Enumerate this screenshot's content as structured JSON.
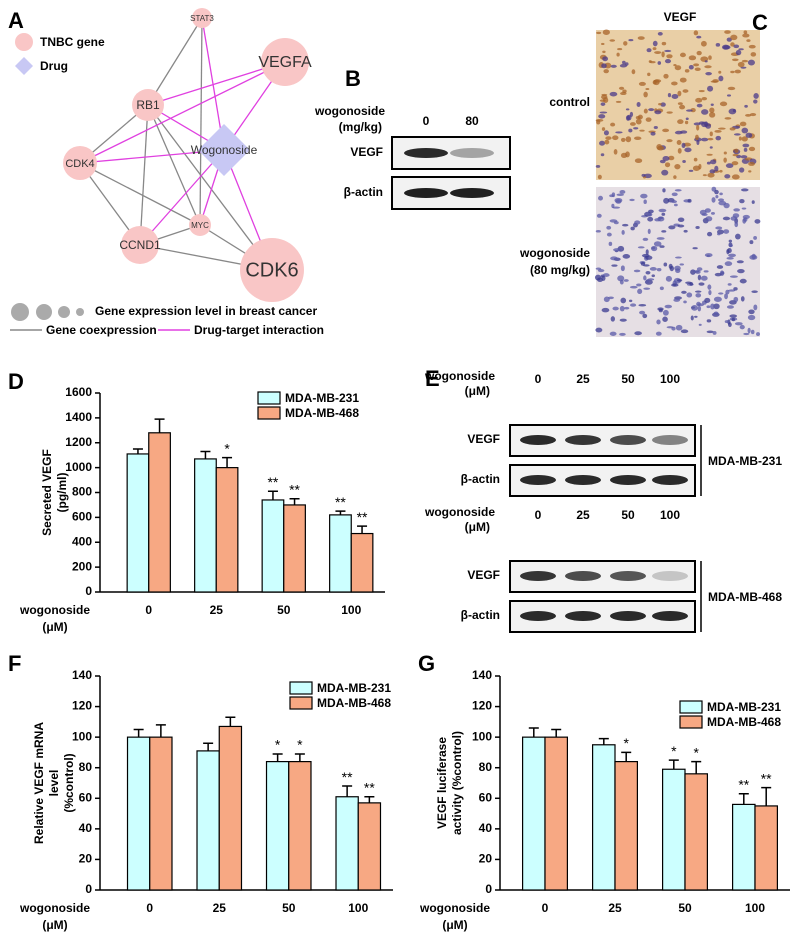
{
  "panel_labels": [
    "A",
    "B",
    "C",
    "D",
    "E",
    "F",
    "G"
  ],
  "network": {
    "nodes": [
      "STAT3",
      "VEGFA",
      "RB1",
      "Wogonoside",
      "CDK4",
      "MYC",
      "CCND1",
      "CDK6"
    ],
    "legend": {
      "gene": "TNBC gene",
      "drug": "Drug",
      "size": "Gene expression level in breast cancer",
      "coexpression": "Gene coexpression",
      "interaction": "Drug-target interaction"
    }
  },
  "blot_b": {
    "treatment": [
      "wogonoside",
      "(mg/kg)"
    ],
    "lanes": [
      "0",
      "80"
    ],
    "rows": [
      "VEGF",
      "β-actin"
    ]
  },
  "histology": {
    "title": "VEGF",
    "rows": [
      [
        "control"
      ],
      [
        "wogonoside",
        "(80 mg/kg)"
      ]
    ]
  },
  "blot_e": {
    "blots": [
      {
        "treatment": [
          "wogonoside",
          "(μM)"
        ],
        "lanes": [
          "0",
          "25",
          "50",
          "100"
        ],
        "rows": [
          "VEGF",
          "β-actin"
        ],
        "cell_line": "MDA-MB-231"
      },
      {
        "treatment": [
          "wogonoside",
          "(μM)"
        ],
        "lanes": [
          "0",
          "25",
          "50",
          "100"
        ],
        "rows": [
          "VEGF",
          "β-actin"
        ],
        "cell_line": "MDA-MB-468"
      }
    ]
  },
  "chart_data": [
    {
      "type": "bar",
      "xlabel": [
        "wogonoside",
        "(μM)"
      ],
      "ylabel": [
        "Secreted VEGF",
        "(pg/ml)"
      ],
      "categories": [
        "0",
        "25",
        "50",
        "100"
      ],
      "series": [
        {
          "name": "MDA-MB-231",
          "color": "#ccffff",
          "values": [
            1110,
            1070,
            740,
            620
          ],
          "errors": [
            40,
            60,
            70,
            30
          ],
          "significance": [
            null,
            null,
            "**",
            "**"
          ]
        },
        {
          "name": "MDA-MB-468",
          "color": "#f7a883",
          "values": [
            1280,
            1000,
            700,
            470
          ],
          "errors": [
            110,
            80,
            50,
            60
          ],
          "significance": [
            null,
            "*",
            "**",
            "**"
          ]
        }
      ],
      "ylim": [
        0,
        1600
      ],
      "yticks": [
        0,
        200,
        400,
        600,
        800,
        1000,
        1200,
        1400,
        1600
      ],
      "legend": "upper right"
    },
    {
      "type": "bar",
      "xlabel": [
        "wogonoside",
        "(μM)"
      ],
      "ylabel": [
        "Relative VEGF mRNA",
        "level",
        "(%control)"
      ],
      "categories": [
        "0",
        "25",
        "50",
        "100"
      ],
      "series": [
        {
          "name": "MDA-MB-231",
          "color": "#ccffff",
          "values": [
            100,
            91,
            84,
            61
          ],
          "errors": [
            5,
            5,
            5,
            7
          ],
          "significance": [
            null,
            null,
            "*",
            "**"
          ]
        },
        {
          "name": "MDA-MB-468",
          "color": "#f7a883",
          "values": [
            100,
            107,
            84,
            57
          ],
          "errors": [
            8,
            6,
            5,
            4
          ],
          "significance": [
            null,
            null,
            "*",
            "**"
          ]
        }
      ],
      "ylim": [
        0,
        140
      ],
      "yticks": [
        0,
        20,
        40,
        60,
        80,
        100,
        120,
        140
      ],
      "legend": "upper right"
    },
    {
      "type": "bar",
      "xlabel": [
        "wogonoside",
        "(μM)"
      ],
      "ylabel": [
        "VEGF luciferase",
        "activity (%control)"
      ],
      "categories": [
        "0",
        "25",
        "50",
        "100"
      ],
      "series": [
        {
          "name": "MDA-MB-231",
          "color": "#ccffff",
          "values": [
            100,
            95,
            79,
            56
          ],
          "errors": [
            6,
            4,
            6,
            7
          ],
          "significance": [
            null,
            null,
            "*",
            "**"
          ]
        },
        {
          "name": "MDA-MB-468",
          "color": "#f7a883",
          "values": [
            100,
            84,
            76,
            55
          ],
          "errors": [
            5,
            6,
            8,
            12
          ],
          "significance": [
            null,
            "*",
            "*",
            "**"
          ]
        }
      ],
      "ylim": [
        0,
        140
      ],
      "yticks": [
        0,
        20,
        40,
        60,
        80,
        100,
        120,
        140
      ],
      "legend": "upper right"
    }
  ]
}
